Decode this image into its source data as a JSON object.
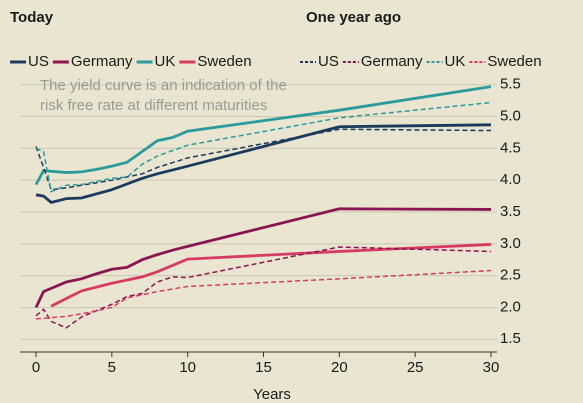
{
  "chart_data": {
    "type": "line",
    "legend_groups": [
      "Today",
      "One year ago"
    ],
    "annotation": [
      "The yield curve is an indication of the",
      "risk free rate at different maturities"
    ],
    "x_label": "Years",
    "xlim": [
      0,
      30
    ],
    "xticks": [
      0,
      5,
      10,
      15,
      20,
      25,
      30
    ],
    "ylim": [
      1.3,
      5.7
    ],
    "yticks": [
      {
        "value": 1.5,
        "label": "1.5"
      },
      {
        "value": 2,
        "label": "2.0"
      },
      {
        "value": 2.5,
        "label": "2.5"
      },
      {
        "value": 3,
        "label": "3.0"
      },
      {
        "value": 3.5,
        "label": "3.5"
      },
      {
        "value": 4,
        "label": "4.0"
      },
      {
        "value": 4.5,
        "label": "4.5"
      },
      {
        "value": 5,
        "label": "5.0"
      },
      {
        "value": 5.5,
        "label": "5.5"
      }
    ],
    "grid": true,
    "series": [
      {
        "name": "US",
        "color": "#1b3a5e",
        "group": 0,
        "line_style": "solid",
        "x": [
          0,
          0.5,
          1,
          2,
          3,
          5,
          6,
          7,
          8,
          10,
          20,
          30
        ],
        "values": [
          3.77,
          3.75,
          3.65,
          3.71,
          3.72,
          3.85,
          3.94,
          4.03,
          4.1,
          4.22,
          4.84,
          4.87
        ]
      },
      {
        "name": "Germany",
        "color": "#8a1550",
        "group": 0,
        "line_style": "solid",
        "x": [
          0,
          0.5,
          1,
          2,
          3,
          4,
          5,
          6,
          7,
          8,
          9,
          10,
          20,
          30
        ],
        "values": [
          2.0,
          2.25,
          2.3,
          2.4,
          2.45,
          2.53,
          2.6,
          2.63,
          2.75,
          2.83,
          2.9,
          2.96,
          3.55,
          3.54
        ]
      },
      {
        "name": "UK",
        "color": "#2a9b9c",
        "group": 0,
        "line_style": "solid",
        "x": [
          0,
          0.5,
          1,
          2,
          3,
          4,
          5,
          6,
          7,
          8,
          9,
          10,
          20,
          30
        ],
        "values": [
          3.93,
          4.15,
          4.14,
          4.12,
          4.13,
          4.17,
          4.22,
          4.28,
          4.45,
          4.62,
          4.67,
          4.77,
          5.1,
          5.47
        ]
      },
      {
        "name": "Sweden",
        "color": "#d63c63",
        "group": 0,
        "line_style": "solid",
        "x": [
          1,
          2,
          3,
          5,
          7,
          8,
          10,
          20,
          30
        ],
        "values": [
          2.02,
          2.14,
          2.26,
          2.38,
          2.48,
          2.56,
          2.76,
          2.88,
          2.99
        ]
      },
      {
        "name": "US",
        "color": "#1b3a5e",
        "group": 1,
        "line_style": "dashed",
        "x": [
          0,
          0.5,
          1,
          2,
          3,
          5,
          7,
          8,
          10,
          20,
          30
        ],
        "values": [
          4.53,
          4.2,
          3.85,
          3.88,
          3.92,
          4.0,
          4.1,
          4.2,
          4.35,
          4.8,
          4.78
        ]
      },
      {
        "name": "Germany",
        "color": "#8a1550",
        "group": 1,
        "line_style": "dashed",
        "x": [
          0,
          0.5,
          1,
          2,
          3,
          5,
          6,
          7,
          8,
          9,
          10,
          20,
          30
        ],
        "values": [
          1.87,
          1.97,
          1.78,
          1.68,
          1.85,
          2.05,
          2.17,
          2.22,
          2.4,
          2.48,
          2.47,
          2.95,
          2.88
        ]
      },
      {
        "name": "UK",
        "color": "#2a9b9c",
        "group": 1,
        "line_style": "dashed",
        "x": [
          0,
          0.5,
          1,
          2,
          3,
          5,
          6,
          7,
          8,
          10,
          20,
          30
        ],
        "values": [
          4.5,
          4.45,
          3.82,
          3.92,
          3.93,
          4.03,
          4.05,
          4.25,
          4.38,
          4.55,
          4.98,
          5.22
        ]
      },
      {
        "name": "Sweden",
        "color": "#d63c63",
        "group": 1,
        "line_style": "dashed",
        "x": [
          0,
          1,
          2,
          3,
          5,
          6,
          8,
          10,
          20,
          30
        ],
        "values": [
          1.82,
          1.84,
          1.86,
          1.9,
          2.0,
          2.15,
          2.25,
          2.33,
          2.45,
          2.58
        ]
      }
    ]
  }
}
